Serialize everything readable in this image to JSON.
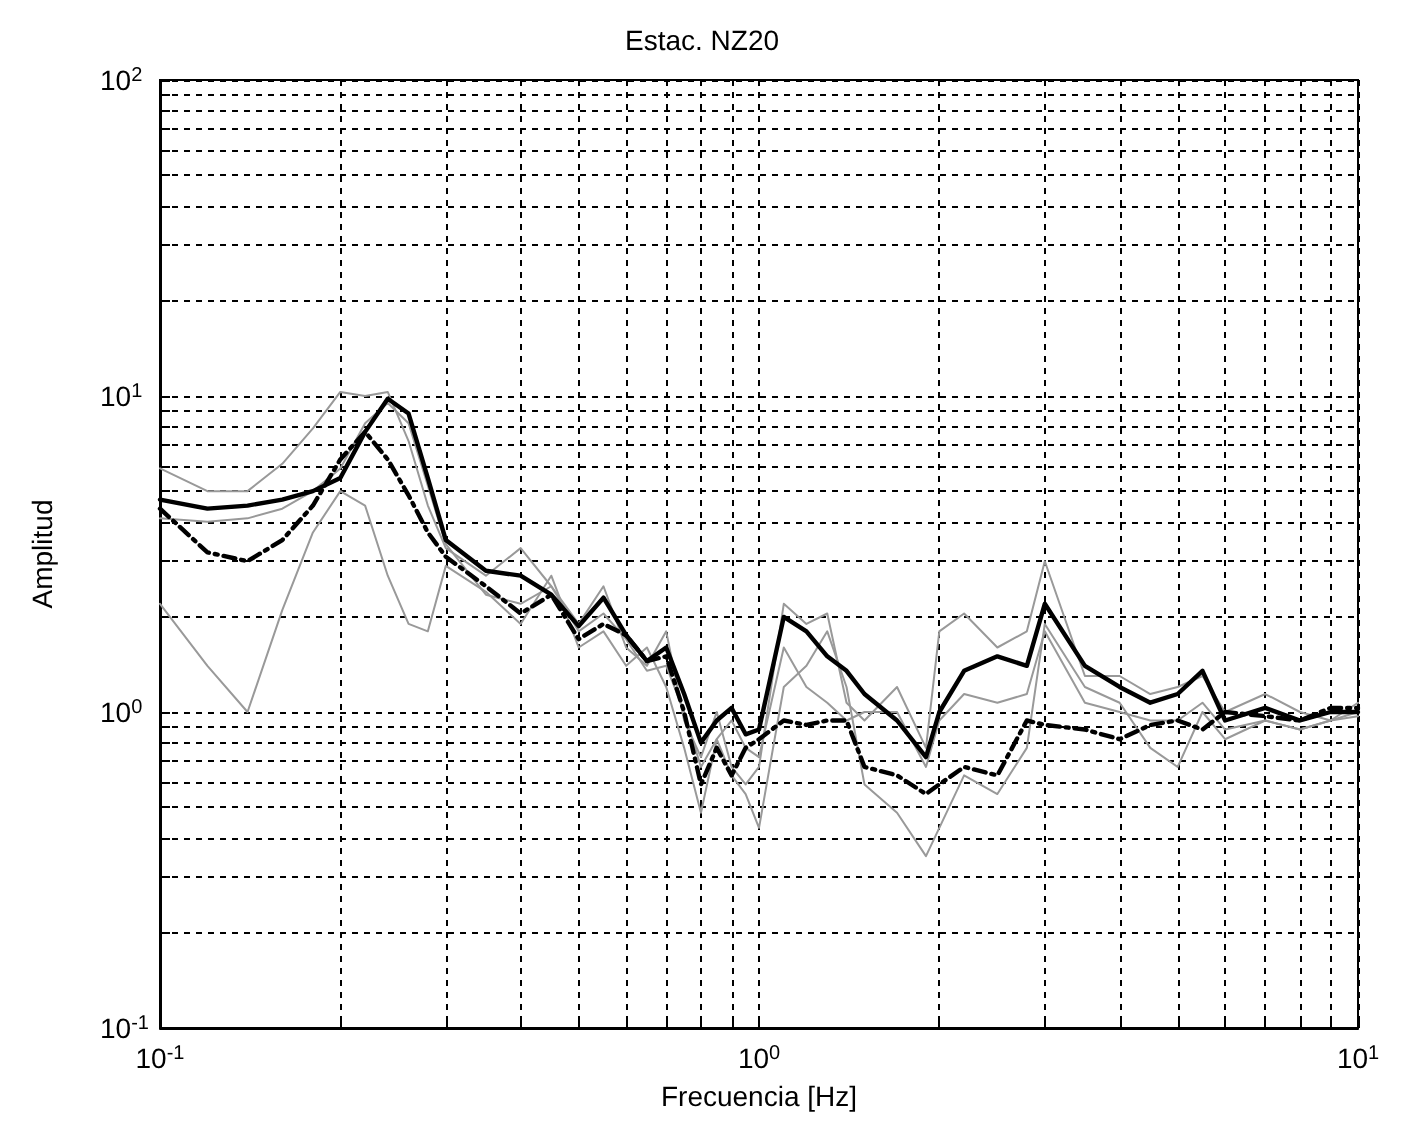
{
  "chart_data": {
    "type": "line",
    "title": "Estac. NZ20",
    "xlabel": "Frecuencia [Hz]",
    "ylabel": "Amplitud",
    "log": "xy",
    "grid": true,
    "xlim": [
      0.1,
      10
    ],
    "ylim": [
      0.1,
      100
    ],
    "xticks": [
      {
        "value": 0.1,
        "label": "10$^{-1}$"
      },
      {
        "value": 0.2,
        "label": null
      },
      {
        "value": 0.3,
        "label": null
      },
      {
        "value": 0.4,
        "label": null
      },
      {
        "value": 0.5,
        "label": null
      },
      {
        "value": 0.6,
        "label": null
      },
      {
        "value": 0.7,
        "label": null
      },
      {
        "value": 0.8,
        "label": null
      },
      {
        "value": 0.9,
        "label": null
      },
      {
        "value": 1,
        "label": "10$^{0}$"
      },
      {
        "value": 2,
        "label": null
      },
      {
        "value": 3,
        "label": null
      },
      {
        "value": 4,
        "label": null
      },
      {
        "value": 5,
        "label": null
      },
      {
        "value": 6,
        "label": null
      },
      {
        "value": 7,
        "label": null
      },
      {
        "value": 8,
        "label": null
      },
      {
        "value": 9,
        "label": null
      },
      {
        "value": 10,
        "label": "10$^{1}$"
      }
    ],
    "yticks": [
      {
        "value": 0.1,
        "label": "10$^{-1}$"
      },
      {
        "value": 0.2,
        "label": null
      },
      {
        "value": 0.3,
        "label": null
      },
      {
        "value": 0.4,
        "label": null
      },
      {
        "value": 0.5,
        "label": null
      },
      {
        "value": 0.6,
        "label": null
      },
      {
        "value": 0.7,
        "label": null
      },
      {
        "value": 0.8,
        "label": null
      },
      {
        "value": 0.9,
        "label": null
      },
      {
        "value": 1,
        "label": "10$^{0}$"
      },
      {
        "value": 2,
        "label": null
      },
      {
        "value": 3,
        "label": null
      },
      {
        "value": 4,
        "label": null
      },
      {
        "value": 5,
        "label": null
      },
      {
        "value": 6,
        "label": null
      },
      {
        "value": 7,
        "label": null
      },
      {
        "value": 8,
        "label": null
      },
      {
        "value": 9,
        "label": null
      },
      {
        "value": 10,
        "label": "10$^{1}$"
      },
      {
        "value": 20,
        "label": null
      },
      {
        "value": 30,
        "label": null
      },
      {
        "value": 40,
        "label": null
      },
      {
        "value": 50,
        "label": null
      },
      {
        "value": 60,
        "label": null
      },
      {
        "value": 70,
        "label": null
      },
      {
        "value": 80,
        "label": null
      },
      {
        "value": 90,
        "label": null
      },
      {
        "value": 100,
        "label": "10$^{2}$"
      }
    ],
    "x": [
      0.1,
      0.12,
      0.14,
      0.16,
      0.18,
      0.2,
      0.22,
      0.24,
      0.26,
      0.28,
      0.3,
      0.35,
      0.4,
      0.45,
      0.5,
      0.55,
      0.6,
      0.65,
      0.7,
      0.75,
      0.8,
      0.85,
      0.9,
      0.95,
      1.0,
      1.1,
      1.2,
      1.3,
      1.4,
      1.5,
      1.7,
      1.9,
      2.0,
      2.2,
      2.5,
      2.8,
      3.0,
      3.5,
      4,
      4.5,
      5,
      5.5,
      6,
      7,
      8,
      9,
      10
    ],
    "series": [
      {
        "color": "#999999",
        "line_style": "solid",
        "values": [
          2.2,
          1.4,
          1.0,
          2.1,
          3.7,
          5.0,
          4.5,
          2.7,
          1.9,
          1.8,
          2.9,
          2.4,
          1.9,
          2.7,
          1.6,
          1.8,
          1.4,
          1.6,
          1.2,
          0.77,
          0.48,
          0.82,
          0.63,
          0.55,
          0.43,
          1.2,
          1.4,
          1.8,
          1.2,
          0.59,
          0.48,
          0.35,
          0.43,
          0.63,
          0.55,
          0.77,
          1.9,
          1.2,
          1.07,
          0.77,
          0.67,
          1.0,
          0.82,
          0.94,
          0.88,
          0.94,
          1.0
        ]
      },
      {
        "color": "#999999",
        "line_style": "solid",
        "values": [
          5.9,
          5.0,
          5.0,
          6.1,
          7.9,
          10.3,
          10,
          10.3,
          7.2,
          4.5,
          3.3,
          2.7,
          3.3,
          2.5,
          1.9,
          2.5,
          1.6,
          1.4,
          1.8,
          0.94,
          0.72,
          1.0,
          0.67,
          0.59,
          0.67,
          2.2,
          1.9,
          2.05,
          1.07,
          0.94,
          1.2,
          0.77,
          1.8,
          2.05,
          1.6,
          1.8,
          3.0,
          1.3,
          1.3,
          1.14,
          1.2,
          1.3,
          1.0,
          1.14,
          1.0,
          0.94,
          1.07
        ]
      },
      {
        "color": "#999999",
        "line_style": "solid",
        "values": [
          4.1,
          4.0,
          4.1,
          4.4,
          5.0,
          5.9,
          8.2,
          9.5,
          8.2,
          5.2,
          3.4,
          2.35,
          2.2,
          2.5,
          1.8,
          2.05,
          1.7,
          1.35,
          1.4,
          1.0,
          0.67,
          0.82,
          0.94,
          0.77,
          0.72,
          1.6,
          1.2,
          1.07,
          0.94,
          1.0,
          1.0,
          0.67,
          0.94,
          1.14,
          1.07,
          1.14,
          1.8,
          1.07,
          1.0,
          0.94,
          0.94,
          1.07,
          0.88,
          0.94,
          0.88,
          0.94,
          0.97
        ]
      },
      {
        "color": "#000000",
        "line_style": "dashed",
        "values": [
          4.4,
          3.2,
          3.0,
          3.5,
          4.5,
          6.3,
          7.7,
          6.3,
          4.85,
          3.7,
          3.1,
          2.5,
          2.05,
          2.35,
          1.7,
          1.9,
          1.75,
          1.45,
          1.5,
          1.0,
          0.59,
          0.77,
          0.63,
          0.77,
          0.82,
          0.94,
          0.91,
          0.94,
          0.94,
          0.67,
          0.63,
          0.55,
          0.59,
          0.67,
          0.63,
          0.94,
          0.91,
          0.88,
          0.82,
          0.91,
          0.94,
          0.88,
          1.0,
          0.97,
          0.94,
          1.03,
          1.03
        ]
      },
      {
        "color": "#000000",
        "line_style": "solid",
        "values": [
          4.7,
          4.4,
          4.5,
          4.7,
          5.0,
          5.5,
          7.7,
          9.8,
          8.8,
          5.5,
          3.5,
          2.8,
          2.7,
          2.35,
          1.87,
          2.3,
          1.75,
          1.45,
          1.6,
          1.14,
          0.8,
          0.94,
          1.03,
          0.85,
          0.88,
          2.0,
          1.8,
          1.5,
          1.35,
          1.14,
          0.94,
          0.72,
          1.0,
          1.35,
          1.5,
          1.4,
          2.2,
          1.4,
          1.2,
          1.07,
          1.14,
          1.35,
          0.94,
          1.03,
          0.94,
          1.0,
          1.0
        ]
      }
    ]
  }
}
